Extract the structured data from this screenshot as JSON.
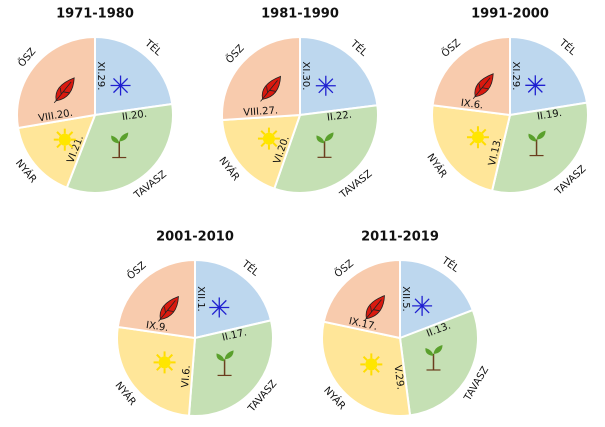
{
  "panels": [
    {
      "title": "1971-1980",
      "seasons": [
        {
          "name": "TÉL",
          "start": "XI.29."
        },
        {
          "name": "TAVASZ",
          "start": "II.20."
        },
        {
          "name": "NYÁR",
          "start": "VI.21."
        },
        {
          "name": "ŐSZ",
          "start": "VIII.20."
        }
      ]
    },
    {
      "title": "1981-1990",
      "seasons": [
        {
          "name": "TÉL",
          "start": "XI.30."
        },
        {
          "name": "TAVASZ",
          "start": "II.22."
        },
        {
          "name": "NYÁR",
          "start": "VI.20."
        },
        {
          "name": "ŐSZ",
          "start": "VIII.27."
        }
      ]
    },
    {
      "title": "1991-2000",
      "seasons": [
        {
          "name": "TÉL",
          "start": "XI.29."
        },
        {
          "name": "TAVASZ",
          "start": "II.19."
        },
        {
          "name": "NYÁR",
          "start": "VI.13."
        },
        {
          "name": "ŐSZ",
          "start": "IX.6."
        }
      ]
    },
    {
      "title": "2001-2010",
      "seasons": [
        {
          "name": "TÉL",
          "start": "XII.1."
        },
        {
          "name": "TAVASZ",
          "start": "II.17."
        },
        {
          "name": "NYÁR",
          "start": "VI.6."
        },
        {
          "name": "ŐSZ",
          "start": "IX.9."
        }
      ]
    },
    {
      "title": "2011-2019",
      "seasons": [
        {
          "name": "TÉL",
          "start": "XII.5."
        },
        {
          "name": "TAVASZ",
          "start": "II.13."
        },
        {
          "name": "NYÁR",
          "start": "V.29."
        },
        {
          "name": "ŐSZ",
          "start": "IX.17."
        }
      ]
    }
  ]
}
